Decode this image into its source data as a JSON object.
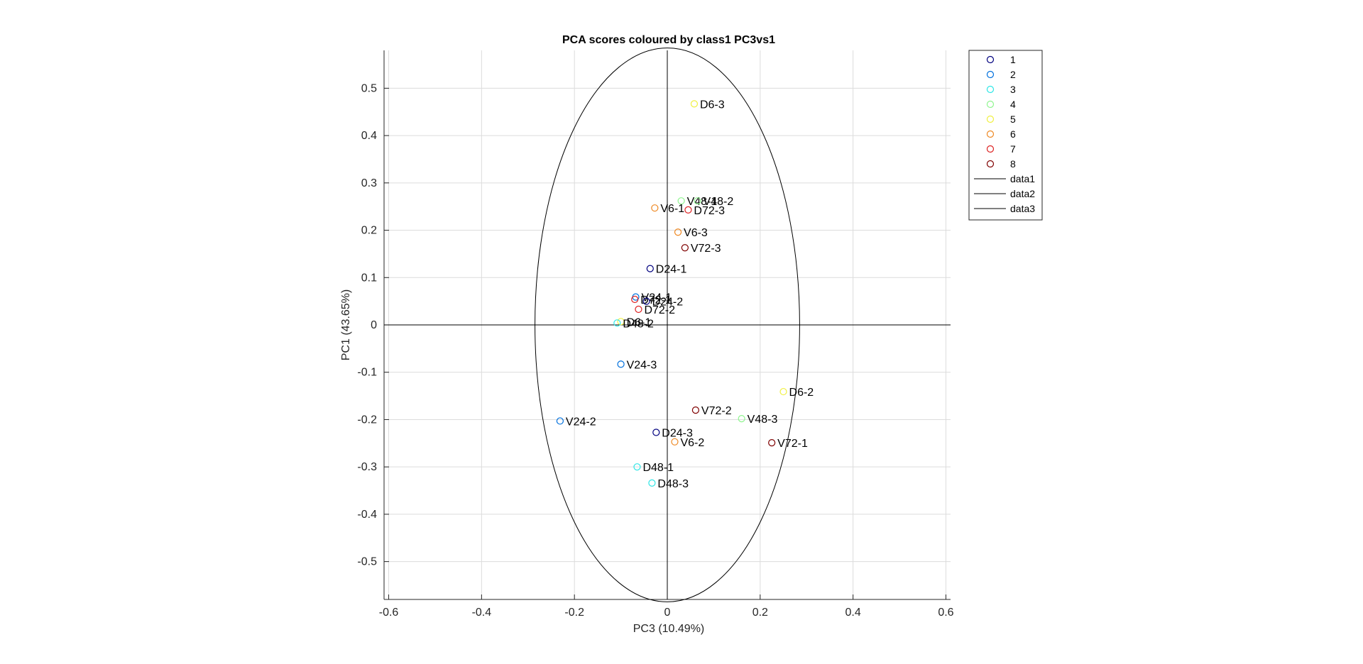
{
  "chart_data": {
    "type": "scatter",
    "title": "PCA scores coloured by class1 PC3vs1",
    "xlabel": "PC3 (10.49%)",
    "ylabel": "PC1 (43.65%)",
    "xlim": [
      -0.61,
      0.61
    ],
    "ylim": [
      -0.58,
      0.58
    ],
    "xticks": [
      -0.6,
      -0.4,
      -0.2,
      0,
      0.2,
      0.4,
      0.6
    ],
    "xtick_labels": [
      "-0.6",
      "-0.4",
      "-0.2",
      "0",
      "0.2",
      "0.4",
      "0.6"
    ],
    "yticks": [
      0.5,
      0.4,
      0.3,
      0.2,
      0.1,
      0,
      -0.1,
      -0.2,
      -0.3,
      -0.4,
      -0.5
    ],
    "ytick_labels": [
      "0.5",
      "0.4",
      "0.3",
      "0.2",
      "0.1",
      "0",
      "-0.1",
      "-0.2",
      "-0.3",
      "-0.4",
      "-0.5"
    ],
    "grid": true,
    "legend_position": "outside-top-right",
    "ellipse": {
      "cx": 0,
      "cy": 0,
      "rx": 0.285,
      "ry": 0.585
    },
    "reference_lines": [
      "vertical at x=0",
      "horizontal at y=0"
    ],
    "classes": [
      {
        "name": "1",
        "color": "#00007f"
      },
      {
        "name": "2",
        "color": "#0070dd"
      },
      {
        "name": "3",
        "color": "#2ee6e6"
      },
      {
        "name": "4",
        "color": "#8ff58f"
      },
      {
        "name": "5",
        "color": "#f0f040"
      },
      {
        "name": "6",
        "color": "#ee8822"
      },
      {
        "name": "7",
        "color": "#dd2222"
      },
      {
        "name": "8",
        "color": "#7f0000"
      }
    ],
    "legend_lines": [
      "data1",
      "data2",
      "data3"
    ],
    "points": [
      {
        "label": "D6-3",
        "x": 0.058,
        "y": 0.467,
        "class": 5
      },
      {
        "label": "V48-1",
        "x": 0.03,
        "y": 0.262,
        "class": 4
      },
      {
        "label": "V48-2",
        "x": 0.065,
        "y": 0.262,
        "class": 4
      },
      {
        "label": "V6-1",
        "x": -0.027,
        "y": 0.247,
        "class": 6
      },
      {
        "label": "D72-3",
        "x": 0.045,
        "y": 0.243,
        "class": 7
      },
      {
        "label": "V6-3",
        "x": 0.023,
        "y": 0.196,
        "class": 6
      },
      {
        "label": "V72-3",
        "x": 0.038,
        "y": 0.163,
        "class": 8
      },
      {
        "label": "D24-1",
        "x": -0.037,
        "y": 0.119,
        "class": 1
      },
      {
        "label": "V24-1",
        "x": -0.068,
        "y": 0.059,
        "class": 2
      },
      {
        "label": "D72-1",
        "x": -0.07,
        "y": 0.054,
        "class": 7
      },
      {
        "label": "D24-2",
        "x": -0.045,
        "y": 0.05,
        "class": 1
      },
      {
        "label": "D72-2",
        "x": -0.062,
        "y": 0.033,
        "class": 7
      },
      {
        "label": "D6-1",
        "x": -0.1,
        "y": 0.007,
        "class": 5
      },
      {
        "label": "D48-2",
        "x": -0.108,
        "y": 0.004,
        "class": 3
      },
      {
        "label": "V24-3",
        "x": -0.1,
        "y": -0.083,
        "class": 2
      },
      {
        "label": "D6-2",
        "x": 0.25,
        "y": -0.141,
        "class": 5
      },
      {
        "label": "V72-2",
        "x": 0.061,
        "y": -0.18,
        "class": 8
      },
      {
        "label": "V48-3",
        "x": 0.16,
        "y": -0.198,
        "class": 4
      },
      {
        "label": "V24-2",
        "x": -0.231,
        "y": -0.203,
        "class": 2
      },
      {
        "label": "D24-3",
        "x": -0.024,
        "y": -0.227,
        "class": 1
      },
      {
        "label": "V6-2",
        "x": 0.016,
        "y": -0.247,
        "class": 6
      },
      {
        "label": "V72-1",
        "x": 0.225,
        "y": -0.249,
        "class": 8
      },
      {
        "label": "D48-1",
        "x": -0.065,
        "y": -0.3,
        "class": 3
      },
      {
        "label": "D48-3",
        "x": -0.033,
        "y": -0.334,
        "class": 3
      }
    ]
  }
}
